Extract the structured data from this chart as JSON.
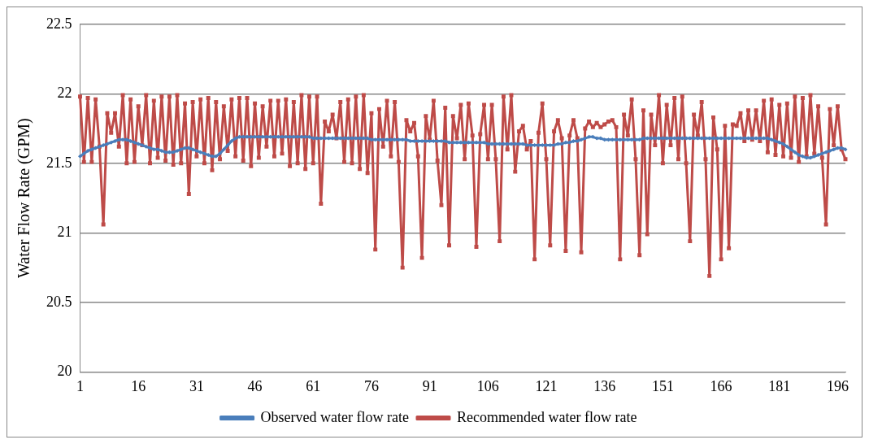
{
  "chart_data": {
    "type": "line",
    "ylabel": "Water Flow Rate (GPM)",
    "categories": [
      "1",
      null,
      null,
      null,
      null,
      null,
      null,
      null,
      null,
      null,
      null,
      null,
      null,
      null,
      null,
      "16",
      null,
      null,
      null,
      null,
      null,
      null,
      null,
      null,
      null,
      null,
      null,
      null,
      null,
      null,
      "31",
      null,
      null,
      null,
      null,
      null,
      null,
      null,
      null,
      null,
      null,
      null,
      null,
      null,
      null,
      "46",
      null,
      null,
      null,
      null,
      null,
      null,
      null,
      null,
      null,
      null,
      null,
      null,
      null,
      null,
      "61",
      null,
      null,
      null,
      null,
      null,
      null,
      null,
      null,
      null,
      null,
      null,
      null,
      null,
      null,
      "76",
      null,
      null,
      null,
      null,
      null,
      null,
      null,
      null,
      null,
      null,
      null,
      null,
      null,
      null,
      "91",
      null,
      null,
      null,
      null,
      null,
      null,
      null,
      null,
      null,
      null,
      null,
      null,
      null,
      null,
      "106",
      null,
      null,
      null,
      null,
      null,
      null,
      null,
      null,
      null,
      null,
      null,
      null,
      null,
      null,
      "121",
      null,
      null,
      null,
      null,
      null,
      null,
      null,
      null,
      null,
      null,
      null,
      null,
      null,
      null,
      "136",
      null,
      null,
      null,
      null,
      null,
      null,
      null,
      null,
      null,
      null,
      null,
      null,
      null,
      null,
      "151",
      null,
      null,
      null,
      null,
      null,
      null,
      null,
      null,
      null,
      null,
      null,
      null,
      null,
      null,
      "166",
      null,
      null,
      null,
      null,
      null,
      null,
      null,
      null,
      null,
      null,
      null,
      null,
      null,
      null,
      "181",
      null,
      null,
      null,
      null,
      null,
      null,
      null,
      null,
      null,
      null,
      null,
      null,
      null,
      null,
      "196",
      null,
      null
    ],
    "series": [
      {
        "name": "Observed water flow rate",
        "color": "#4a7ebb",
        "marker": "diamond",
        "values": [
          21.55,
          21.57,
          21.59,
          21.6,
          21.61,
          21.62,
          21.63,
          21.64,
          21.65,
          21.66,
          21.67,
          21.67,
          21.67,
          21.66,
          21.65,
          21.64,
          21.63,
          21.62,
          21.61,
          21.6,
          21.6,
          21.59,
          21.58,
          21.58,
          21.58,
          21.59,
          21.6,
          21.61,
          21.61,
          21.6,
          21.59,
          21.58,
          21.57,
          21.56,
          21.55,
          21.55,
          21.57,
          21.6,
          21.63,
          21.66,
          21.68,
          21.69,
          21.69,
          21.69,
          21.69,
          21.69,
          21.69,
          21.69,
          21.69,
          21.69,
          21.69,
          21.69,
          21.69,
          21.69,
          21.69,
          21.69,
          21.69,
          21.69,
          21.69,
          21.69,
          21.68,
          21.68,
          21.68,
          21.68,
          21.68,
          21.68,
          21.68,
          21.68,
          21.68,
          21.68,
          21.68,
          21.68,
          21.68,
          21.68,
          21.68,
          21.67,
          21.67,
          21.67,
          21.67,
          21.67,
          21.67,
          21.67,
          21.67,
          21.67,
          21.67,
          21.66,
          21.66,
          21.66,
          21.66,
          21.66,
          21.66,
          21.66,
          21.66,
          21.66,
          21.66,
          21.65,
          21.65,
          21.65,
          21.65,
          21.65,
          21.65,
          21.65,
          21.65,
          21.65,
          21.65,
          21.64,
          21.64,
          21.64,
          21.64,
          21.64,
          21.64,
          21.64,
          21.64,
          21.64,
          21.64,
          21.63,
          21.63,
          21.63,
          21.63,
          21.63,
          21.63,
          21.63,
          21.63,
          21.64,
          21.64,
          21.65,
          21.65,
          21.66,
          21.66,
          21.67,
          21.68,
          21.69,
          21.69,
          21.68,
          21.68,
          21.67,
          21.67,
          21.67,
          21.67,
          21.67,
          21.67,
          21.67,
          21.67,
          21.67,
          21.67,
          21.68,
          21.68,
          21.68,
          21.68,
          21.68,
          21.68,
          21.68,
          21.68,
          21.68,
          21.68,
          21.68,
          21.68,
          21.68,
          21.68,
          21.68,
          21.68,
          21.68,
          21.68,
          21.68,
          21.68,
          21.68,
          21.68,
          21.68,
          21.68,
          21.68,
          21.68,
          21.68,
          21.68,
          21.68,
          21.68,
          21.68,
          21.68,
          21.68,
          21.67,
          21.66,
          21.65,
          21.64,
          21.62,
          21.6,
          21.58,
          21.56,
          21.55,
          21.54,
          21.54,
          21.55,
          21.56,
          21.57,
          21.58,
          21.59,
          21.6,
          21.61,
          21.61,
          21.6
        ]
      },
      {
        "name": "Recommended water flow rate",
        "color": "#be4b48",
        "marker": "square",
        "values": [
          21.98,
          21.51,
          21.97,
          21.51,
          21.96,
          21.62,
          21.06,
          21.86,
          21.72,
          21.86,
          21.62,
          21.99,
          21.5,
          21.96,
          21.51,
          21.91,
          21.63,
          21.99,
          21.5,
          21.95,
          21.54,
          21.98,
          21.52,
          21.98,
          21.49,
          21.99,
          21.5,
          21.93,
          21.28,
          21.94,
          21.55,
          21.96,
          21.5,
          21.97,
          21.45,
          21.94,
          21.53,
          21.91,
          21.59,
          21.96,
          21.55,
          21.97,
          21.52,
          21.97,
          21.48,
          21.93,
          21.54,
          21.91,
          21.62,
          21.95,
          21.55,
          21.95,
          21.57,
          21.96,
          21.48,
          21.94,
          21.5,
          21.99,
          21.46,
          21.98,
          21.5,
          21.98,
          21.21,
          21.8,
          21.73,
          21.85,
          21.68,
          21.94,
          21.51,
          21.96,
          21.5,
          21.98,
          21.46,
          21.99,
          21.43,
          21.86,
          20.88,
          21.89,
          21.62,
          21.95,
          21.55,
          21.94,
          21.51,
          20.75,
          21.81,
          21.73,
          21.79,
          21.55,
          20.82,
          21.84,
          21.67,
          21.95,
          21.52,
          21.2,
          21.9,
          20.91,
          21.84,
          21.68,
          21.92,
          21.53,
          21.93,
          21.7,
          20.9,
          21.71,
          21.92,
          21.53,
          21.92,
          21.53,
          20.94,
          21.98,
          21.6,
          21.99,
          21.44,
          21.73,
          21.77,
          21.6,
          21.66,
          20.81,
          21.72,
          21.93,
          21.53,
          20.91,
          21.73,
          21.81,
          21.68,
          20.87,
          21.7,
          21.81,
          21.68,
          20.86,
          21.75,
          21.8,
          21.76,
          21.79,
          21.76,
          21.78,
          21.8,
          21.81,
          21.76,
          20.81,
          21.85,
          21.7,
          21.96,
          21.53,
          20.84,
          21.88,
          20.99,
          21.85,
          21.63,
          21.99,
          21.5,
          21.92,
          21.63,
          21.97,
          21.53,
          21.98,
          21.5,
          20.94,
          21.85,
          21.7,
          21.94,
          21.53,
          20.69,
          21.83,
          21.6,
          20.81,
          21.77,
          20.89,
          21.78,
          21.77,
          21.86,
          21.66,
          21.88,
          21.67,
          21.88,
          21.66,
          21.95,
          21.58,
          21.96,
          21.56,
          21.92,
          21.55,
          21.93,
          21.54,
          21.98,
          21.51,
          21.97,
          21.55,
          21.99,
          21.57,
          21.91,
          21.54,
          21.06,
          21.89,
          21.63,
          21.91,
          21.6,
          21.53
        ]
      }
    ],
    "ylim": [
      20,
      22.5
    ],
    "yticks": [
      20,
      20.5,
      21,
      21.5,
      22,
      22.5
    ],
    "grid": "y",
    "legend": "bottom",
    "line_style": "solid"
  }
}
